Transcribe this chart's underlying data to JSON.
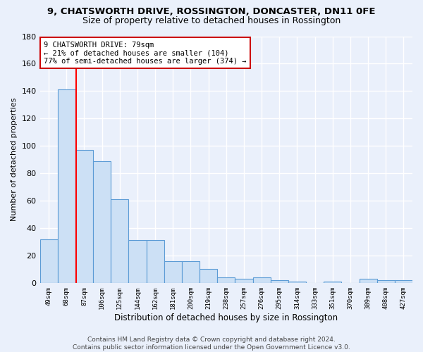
{
  "title": "9, CHATSWORTH DRIVE, ROSSINGTON, DONCASTER, DN11 0FE",
  "subtitle": "Size of property relative to detached houses in Rossington",
  "xlabel": "Distribution of detached houses by size in Rossington",
  "ylabel": "Number of detached properties",
  "categories": [
    "49sqm",
    "68sqm",
    "87sqm",
    "106sqm",
    "125sqm",
    "144sqm",
    "162sqm",
    "181sqm",
    "200sqm",
    "219sqm",
    "238sqm",
    "257sqm",
    "276sqm",
    "295sqm",
    "314sqm",
    "333sqm",
    "351sqm",
    "370sqm",
    "389sqm",
    "408sqm",
    "427sqm"
  ],
  "values": [
    32,
    141,
    97,
    89,
    61,
    31,
    31,
    16,
    16,
    10,
    4,
    3,
    4,
    2,
    1,
    0,
    1,
    0,
    3,
    2,
    2
  ],
  "bar_color": "#cce0f5",
  "bar_edge_color": "#5b9bd5",
  "background_color": "#eaf0fb",
  "grid_color": "#ffffff",
  "redline_index": 1.55,
  "annotation_line1": "9 CHATSWORTH DRIVE: 79sqm",
  "annotation_line2": "← 21% of detached houses are smaller (104)",
  "annotation_line3": "77% of semi-detached houses are larger (374) →",
  "annotation_box_color": "#ffffff",
  "annotation_box_edge": "#cc0000",
  "ylim": [
    0,
    180
  ],
  "yticks": [
    0,
    20,
    40,
    60,
    80,
    100,
    120,
    140,
    160,
    180
  ],
  "footer": "Contains HM Land Registry data © Crown copyright and database right 2024.\nContains public sector information licensed under the Open Government Licence v3.0."
}
